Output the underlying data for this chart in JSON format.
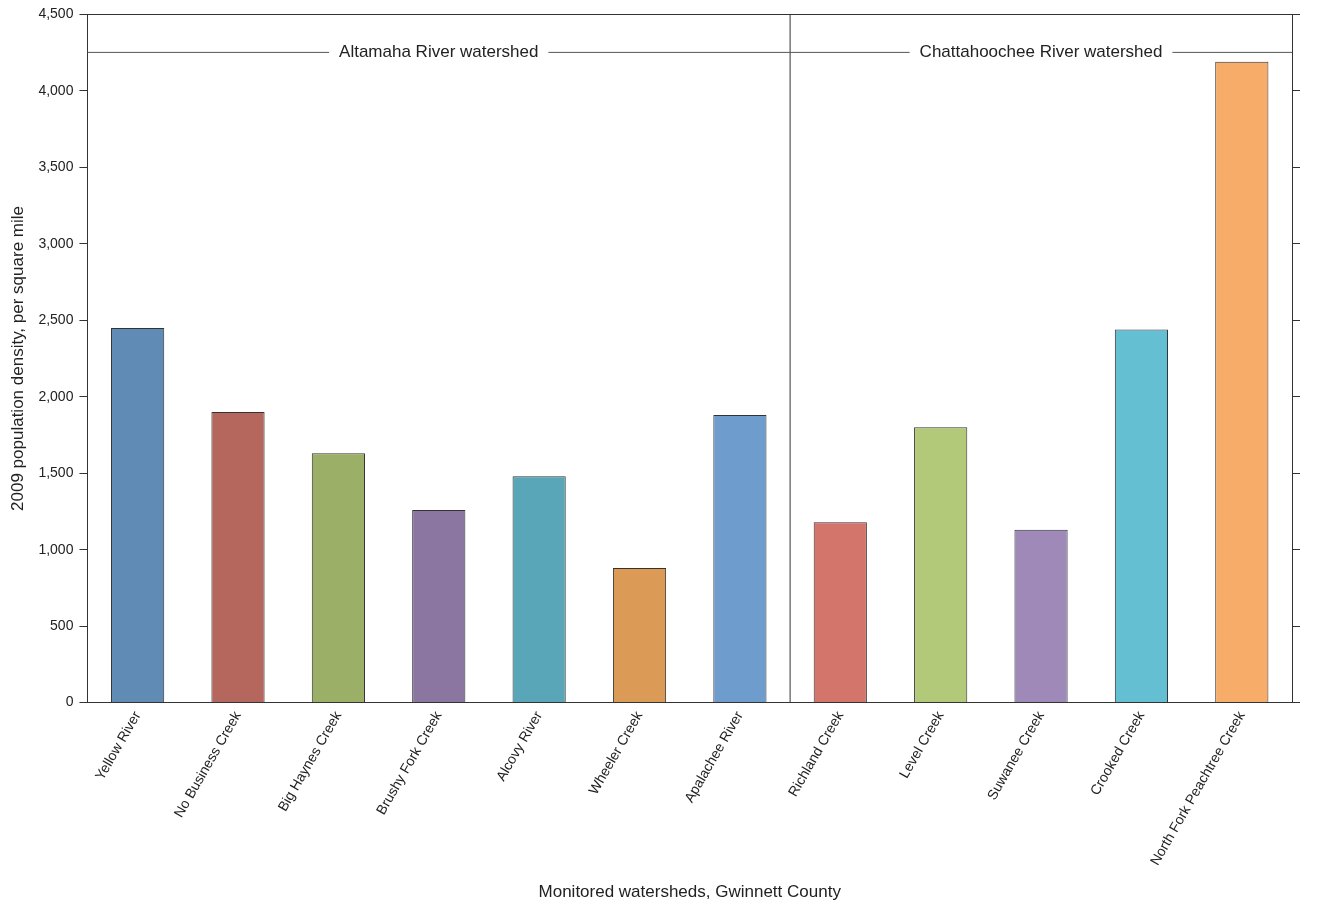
{
  "chart_data": {
    "type": "bar",
    "xlabel": "Monitored watersheds, Gwinnett County",
    "ylabel": "2009 population density, per square mile",
    "categories": [
      "Yellow River",
      "No Business Creek",
      "Big Haynes Creek",
      "Brushy Fork Creek",
      "Alcovy River",
      "Wheeler Creek",
      "Apalachee River",
      "Richland Creek",
      "Level Creek",
      "Suwanee Creek",
      "Crooked Creek",
      "North Fork Peachtree Creek"
    ],
    "values": [
      2450,
      1900,
      1630,
      1260,
      1480,
      880,
      1880,
      1180,
      1800,
      1130,
      2440,
      4190
    ],
    "colors": [
      "#5f8bb5",
      "#b5665d",
      "#9caf67",
      "#8a76a0",
      "#58a6b8",
      "#dc9a57",
      "#6e9dcd",
      "#d4756c",
      "#b3c97a",
      "#9e89b8",
      "#64bfd3",
      "#f7ac69"
    ],
    "ylim": [
      0,
      4500
    ],
    "yticks": [
      {
        "value": 0,
        "label": "0"
      },
      {
        "value": 500,
        "label": "500"
      },
      {
        "value": 1000,
        "label": "1,000"
      },
      {
        "value": 1500,
        "label": "1,500"
      },
      {
        "value": 2000,
        "label": "2,000"
      },
      {
        "value": 2500,
        "label": "2,500"
      },
      {
        "value": 3000,
        "label": "3,000"
      },
      {
        "value": 3500,
        "label": "3,500"
      },
      {
        "value": 4000,
        "label": "4,000"
      },
      {
        "value": 4500,
        "label": "4,500"
      }
    ],
    "annotations": [
      "Altamaha River watershed",
      "Chattahoochee River watershed"
    ],
    "grid": false,
    "legend": false
  }
}
